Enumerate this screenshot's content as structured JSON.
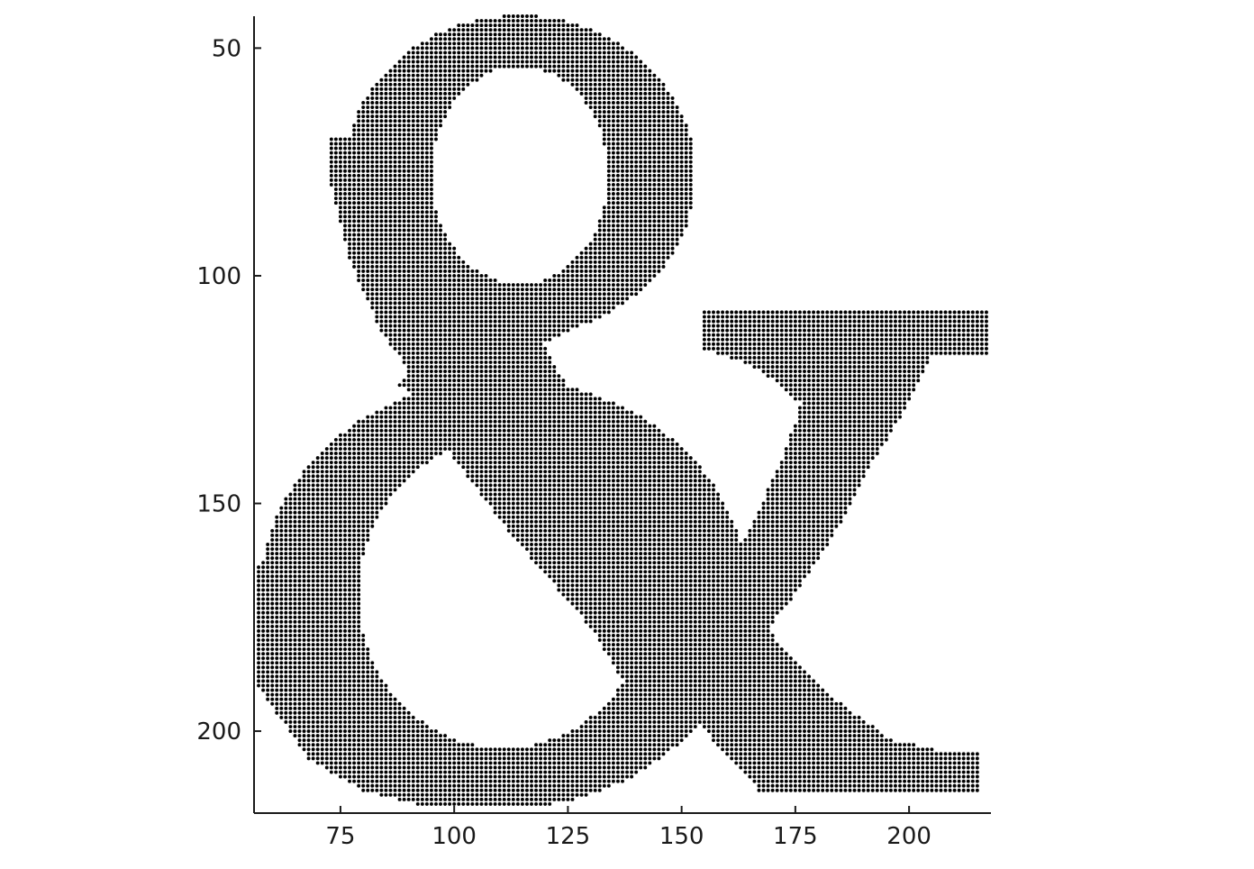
{
  "chart_data": {
    "type": "scatter",
    "title": "",
    "xlabel": "",
    "ylabel": "",
    "grid": false,
    "legend": "none",
    "xlim": [
      56,
      218
    ],
    "ylim": [
      43,
      218
    ],
    "y_inverted": true,
    "x_ticks": [
      75,
      100,
      125,
      150,
      175,
      200
    ],
    "y_ticks": [
      50,
      100,
      150,
      200
    ],
    "x_tick_labels": [
      "75",
      "100",
      "125",
      "150",
      "175",
      "200"
    ],
    "y_tick_labels": [
      "50",
      "100",
      "150",
      "200"
    ],
    "marker_color": "#000000",
    "axis_color": "#1a1a1a",
    "point_spacing": 1,
    "series": [
      {
        "shape": "ampersand glyph drawn as a regular grid of point markers, one point per integer x/y inside the filled letter",
        "x_range": [
          57,
          217
        ],
        "y_range": [
          43,
          217
        ]
      }
    ]
  }
}
